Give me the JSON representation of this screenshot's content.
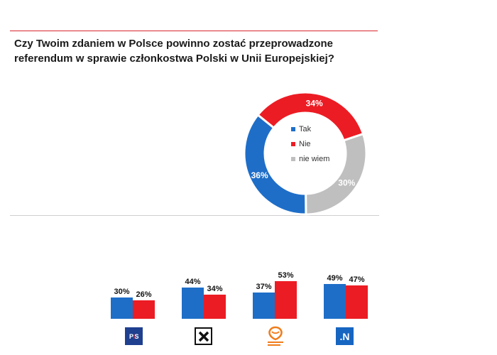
{
  "title": "Czy Twoim zdaniem w Polsce powinno zostać przeprowadzone referendum w sprawie członkostwa Polski w Unii Europejskiej?",
  "colors": {
    "tak": "#1e6ec8",
    "nie": "#ec1c24",
    "nie_wiem": "#bfbfbf"
  },
  "chart_data": [
    {
      "type": "pie",
      "title": "Czy Twoim zdaniem w Polsce powinno zostać przeprowadzone referendum w sprawie członkostwa Polski w Unii Europejskiej?",
      "labels": [
        "Tak",
        "Nie",
        "nie wiem"
      ],
      "values": [
        36,
        34,
        30
      ],
      "data_labels": [
        "36%",
        "34%",
        "30%"
      ],
      "legend": [
        "Tak",
        "Nie",
        "nie wiem"
      ],
      "legend_position": "center"
    },
    {
      "type": "bar",
      "categories": [
        "PiS",
        "Kukiz'15",
        "Platforma Obywatelska",
        "Nowoczesna"
      ],
      "series": [
        {
          "name": "Tak",
          "values": [
            30,
            44,
            37,
            49
          ],
          "data_labels": [
            "30%",
            "44%",
            "37%",
            "49%"
          ]
        },
        {
          "name": "Nie",
          "values": [
            26,
            34,
            53,
            47
          ],
          "data_labels": [
            "26%",
            "34%",
            "53%",
            "47%"
          ]
        }
      ],
      "ylim": [
        0,
        55
      ]
    }
  ],
  "logos": {
    "pis": "PiS",
    "kukiz": "X",
    "po": "Platforma Obywatelska",
    "n": ".N"
  }
}
